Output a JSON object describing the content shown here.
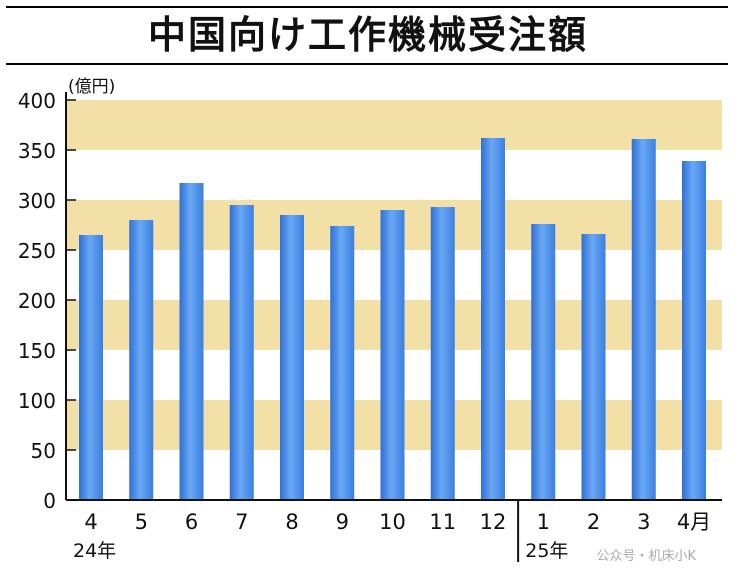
{
  "chart_data": {
    "type": "bar",
    "title": "中国向け工作機械受注額",
    "unit_label": "(億円)",
    "ylim": [
      0,
      400
    ],
    "y_ticks": [
      0,
      50,
      100,
      150,
      200,
      250,
      300,
      350,
      400
    ],
    "categories": [
      "4",
      "5",
      "6",
      "7",
      "8",
      "9",
      "10",
      "11",
      "12",
      "1",
      "2",
      "3",
      "4月"
    ],
    "values": [
      265,
      280,
      317,
      295,
      285,
      274,
      290,
      293,
      362,
      276,
      266,
      361,
      339
    ],
    "year_labels": [
      {
        "text": "24年",
        "start_index": 0
      },
      {
        "text": "25年",
        "start_index": 9
      }
    ],
    "band_color": "#f3e0a6",
    "bar_color": "#4f8fe6",
    "grid": false,
    "legend": "none"
  },
  "watermark": "公众号・机床小K"
}
